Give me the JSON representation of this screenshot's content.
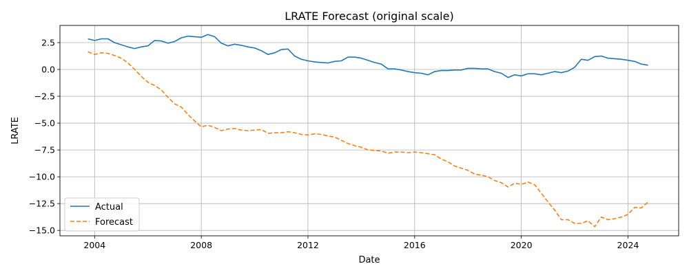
{
  "chart_data": {
    "type": "line",
    "title": "LRATE Forecast (original scale)",
    "xlabel": "Date",
    "ylabel": "LRATE",
    "xlim": [
      2002.7,
      2025.9
    ],
    "ylim": [
      -15.5,
      4.1
    ],
    "x_ticks": [
      2004,
      2008,
      2012,
      2016,
      2020,
      2024
    ],
    "x_tick_labels": [
      "2004",
      "2008",
      "2012",
      "2016",
      "2020",
      "2024"
    ],
    "y_ticks": [
      2.5,
      0.0,
      -2.5,
      -5.0,
      -7.5,
      -10.0,
      -12.5,
      -15.0
    ],
    "y_tick_labels": [
      "2.5",
      "0.0",
      "−2.5",
      "−5.0",
      "−7.5",
      "−10.0",
      "−12.5",
      "−15.0"
    ],
    "grid": true,
    "legend_position": "lower-left",
    "series": [
      {
        "name": "Actual",
        "color": "#1f77b4",
        "style": "solid",
        "x": [
          2003.75,
          2004.0,
          2004.25,
          2004.5,
          2004.75,
          2005.0,
          2005.25,
          2005.5,
          2005.75,
          2006.0,
          2006.25,
          2006.5,
          2006.75,
          2007.0,
          2007.25,
          2007.5,
          2007.75,
          2008.0,
          2008.25,
          2008.5,
          2008.75,
          2009.0,
          2009.25,
          2009.5,
          2009.75,
          2010.0,
          2010.25,
          2010.5,
          2010.75,
          2011.0,
          2011.25,
          2011.5,
          2011.75,
          2012.0,
          2012.25,
          2012.5,
          2012.75,
          2013.0,
          2013.25,
          2013.5,
          2013.75,
          2014.0,
          2014.25,
          2014.5,
          2014.75,
          2015.0,
          2015.25,
          2015.5,
          2015.75,
          2016.0,
          2016.25,
          2016.5,
          2016.75,
          2017.0,
          2017.25,
          2017.5,
          2017.75,
          2018.0,
          2018.25,
          2018.5,
          2018.75,
          2019.0,
          2019.25,
          2019.5,
          2019.75,
          2020.0,
          2020.25,
          2020.5,
          2020.75,
          2021.0,
          2021.25,
          2021.5,
          2021.75,
          2022.0,
          2022.25,
          2022.5,
          2022.75,
          2023.0,
          2023.25,
          2023.5,
          2023.75,
          2024.0,
          2024.25,
          2024.5,
          2024.75
        ],
        "y": [
          2.85,
          2.7,
          2.85,
          2.85,
          2.5,
          2.3,
          2.1,
          1.95,
          2.1,
          2.2,
          2.7,
          2.65,
          2.45,
          2.6,
          2.95,
          3.1,
          3.05,
          3.0,
          3.25,
          3.05,
          2.45,
          2.2,
          2.35,
          2.25,
          2.1,
          2.0,
          1.75,
          1.4,
          1.55,
          1.85,
          1.9,
          1.25,
          0.95,
          0.8,
          0.7,
          0.65,
          0.6,
          0.75,
          0.8,
          1.15,
          1.15,
          1.05,
          0.85,
          0.65,
          0.5,
          0.05,
          0.05,
          -0.05,
          -0.2,
          -0.3,
          -0.35,
          -0.5,
          -0.2,
          -0.1,
          -0.1,
          -0.05,
          -0.05,
          0.1,
          0.1,
          0.05,
          0.05,
          -0.2,
          -0.35,
          -0.75,
          -0.5,
          -0.6,
          -0.4,
          -0.4,
          -0.5,
          -0.35,
          -0.2,
          -0.3,
          -0.15,
          0.2,
          0.95,
          0.85,
          1.2,
          1.25,
          1.05,
          1.0,
          0.95,
          0.85,
          0.75,
          0.5,
          0.4
        ]
      },
      {
        "name": "Forecast",
        "color": "#ff7f0e",
        "style": "dashed",
        "x": [
          2003.75,
          2004.0,
          2004.25,
          2004.5,
          2004.75,
          2005.0,
          2005.25,
          2005.5,
          2005.75,
          2006.0,
          2006.25,
          2006.5,
          2006.75,
          2007.0,
          2007.25,
          2007.5,
          2007.75,
          2008.0,
          2008.25,
          2008.5,
          2008.75,
          2009.0,
          2009.25,
          2009.5,
          2009.75,
          2010.0,
          2010.25,
          2010.5,
          2010.75,
          2011.0,
          2011.25,
          2011.5,
          2011.75,
          2012.0,
          2012.25,
          2012.5,
          2012.75,
          2013.0,
          2013.25,
          2013.5,
          2013.75,
          2014.0,
          2014.25,
          2014.5,
          2014.75,
          2015.0,
          2015.25,
          2015.5,
          2015.75,
          2016.0,
          2016.25,
          2016.5,
          2016.75,
          2017.0,
          2017.25,
          2017.5,
          2017.75,
          2018.0,
          2018.25,
          2018.5,
          2018.75,
          2019.0,
          2019.25,
          2019.5,
          2019.75,
          2020.0,
          2020.25,
          2020.5,
          2020.75,
          2021.0,
          2021.25,
          2021.5,
          2021.75,
          2022.0,
          2022.25,
          2022.5,
          2022.75,
          2023.0,
          2023.25,
          2023.5,
          2023.75,
          2024.0,
          2024.25,
          2024.5,
          2024.75
        ],
        "y": [
          1.65,
          1.4,
          1.55,
          1.5,
          1.3,
          1.05,
          0.6,
          0.0,
          -0.65,
          -1.2,
          -1.5,
          -1.9,
          -2.6,
          -3.2,
          -3.5,
          -4.2,
          -4.8,
          -5.35,
          -5.2,
          -5.4,
          -5.7,
          -5.55,
          -5.5,
          -5.65,
          -5.7,
          -5.65,
          -5.6,
          -5.95,
          -5.9,
          -5.9,
          -5.8,
          -5.9,
          -6.05,
          -6.1,
          -6.0,
          -6.05,
          -6.2,
          -6.3,
          -6.6,
          -6.9,
          -7.1,
          -7.25,
          -7.5,
          -7.55,
          -7.6,
          -7.8,
          -7.7,
          -7.7,
          -7.75,
          -7.7,
          -7.75,
          -7.85,
          -7.95,
          -8.35,
          -8.6,
          -9.0,
          -9.2,
          -9.4,
          -9.75,
          -9.85,
          -10.0,
          -10.35,
          -10.55,
          -10.95,
          -10.6,
          -10.7,
          -10.5,
          -10.75,
          -11.55,
          -12.35,
          -13.1,
          -14.0,
          -14.0,
          -14.35,
          -14.35,
          -14.1,
          -14.65,
          -13.75,
          -14.0,
          -13.9,
          -13.75,
          -13.5,
          -12.85,
          -12.9,
          -12.35
        ]
      }
    ]
  }
}
